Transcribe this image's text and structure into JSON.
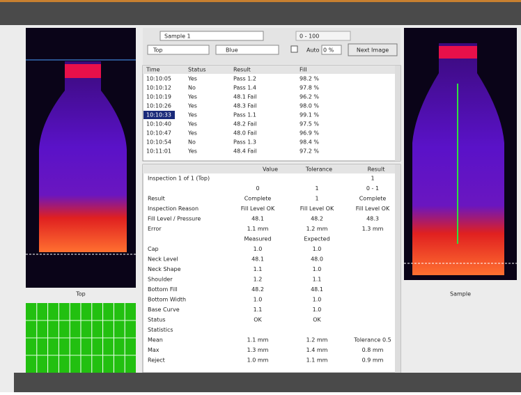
{
  "window": {
    "left_image_label": "Top",
    "right_image_label": "Sample"
  },
  "controls": {
    "product": "Sample 1",
    "mode": "Top",
    "color": "Blue",
    "auto": "Auto",
    "level": "0 %",
    "button": "Next Image",
    "range": "0 - 100"
  },
  "list": {
    "columns": [
      "Time",
      "Status",
      "Result",
      "Fill"
    ],
    "rows": [
      [
        "10:10:05",
        "Yes",
        "Pass 1.2",
        "98.2 %"
      ],
      [
        "10:10:12",
        "No",
        "Pass 1.4",
        "97.8 %"
      ],
      [
        "10:10:19",
        "Yes",
        "48.1 Fail",
        "96.2 %"
      ],
      [
        "10:10:26",
        "Yes",
        "48.3 Fail",
        "98.0 %"
      ],
      [
        "10:10:33",
        "Yes",
        "Pass 1.1",
        "99.1 %"
      ],
      [
        "10:10:40",
        "Yes",
        "48.2 Fail",
        "97.5 %"
      ],
      [
        "10:10:47",
        "Yes",
        "48.0 Fail",
        "96.9 %"
      ],
      [
        "10:10:54",
        "No",
        "Pass 1.3",
        "98.4 %"
      ],
      [
        "10:11:01",
        "Yes",
        "48.4 Fail",
        "97.2 %"
      ]
    ],
    "selected": 4
  },
  "details": {
    "columns": [
      "Value",
      "Tolerance",
      "Result"
    ],
    "rows": [
      [
        "Inspection 1 of 1 (Top)",
        null,
        null,
        "1"
      ],
      [
        null,
        "0",
        "1",
        "0 - 1"
      ],
      [
        "Result",
        "Complete",
        "1",
        "Complete"
      ],
      [
        "Inspection Reason",
        "Fill Level OK",
        "Fill Level OK",
        "Fill Level OK"
      ],
      [
        "Fill Level / Pressure",
        "48.1",
        "48.2",
        "48.3"
      ],
      [
        "Error",
        "1.1 mm",
        "1.2 mm",
        "1.3 mm"
      ],
      [
        null,
        "Measured",
        "Expected",
        null
      ],
      [
        "Cap",
        "1.0",
        "1.0",
        null
      ],
      [
        "Neck Level",
        "48.1",
        "48.0",
        null
      ],
      [
        "Neck Shape",
        "1.1",
        "1.0",
        null
      ],
      [
        "Shoulder",
        "1.2",
        "1.1",
        null
      ],
      [
        "Bottom Fill",
        "48.2",
        "48.1",
        null
      ],
      [
        "Bottom Width",
        "1.0",
        "1.0",
        null
      ],
      [
        "Base Curve",
        "1.1",
        "1.0",
        null
      ],
      [
        "Status",
        "OK",
        "OK",
        null
      ],
      [
        "Statistics",
        null,
        null,
        null
      ],
      [
        "Mean",
        "1.1 mm",
        "1.2 mm",
        "Tolerance 0.5"
      ],
      [
        "Max",
        "1.3 mm",
        "1.4 mm",
        "0.8 mm"
      ],
      [
        "Reject",
        "1.0 mm",
        "1.1 mm",
        "0.9 mm"
      ]
    ]
  }
}
